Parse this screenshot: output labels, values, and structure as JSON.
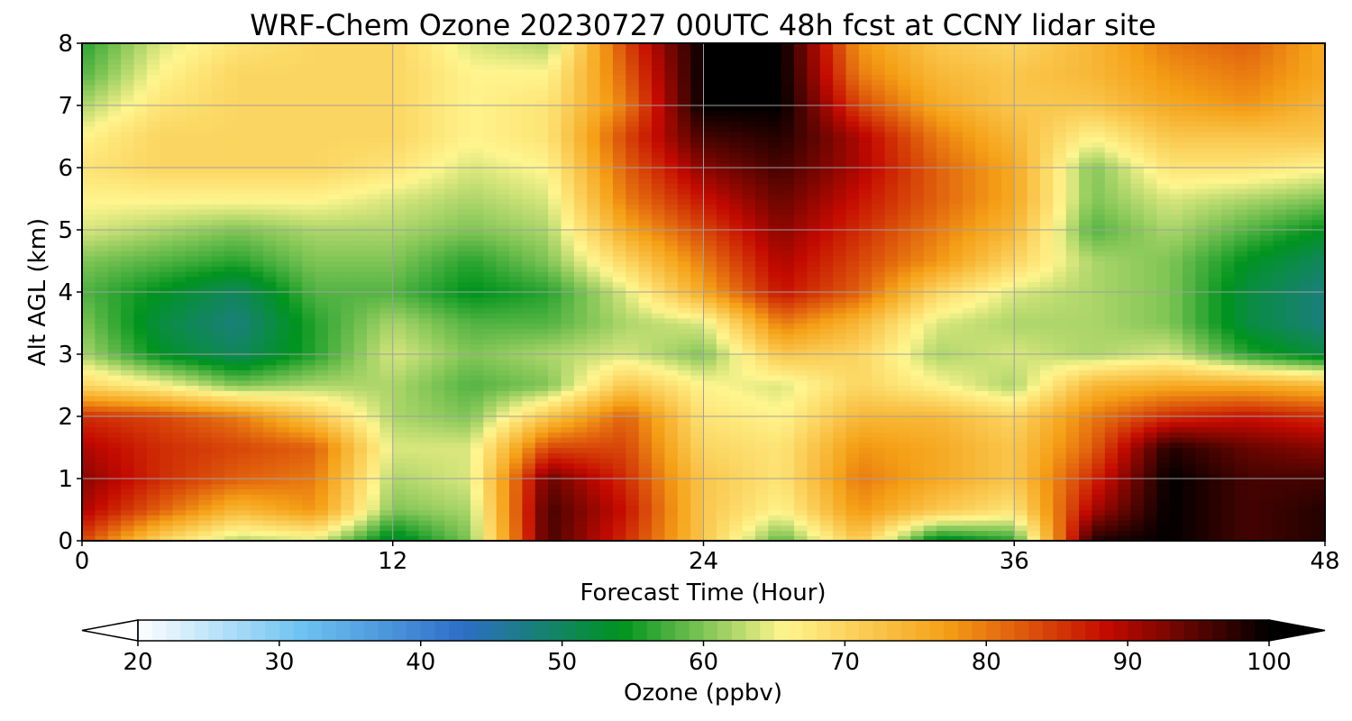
{
  "chart_data": {
    "type": "heatmap",
    "title": "WRF-Chem Ozone  20230727 00UTC 48h fcst at CCNY lidar site",
    "xlabel": "Forecast Time (Hour)",
    "ylabel": "Alt AGL (km)",
    "xlim": [
      0,
      48
    ],
    "ylim": [
      0,
      8
    ],
    "xticks": [
      0,
      12,
      24,
      36,
      48
    ],
    "yticks": [
      0,
      1,
      2,
      3,
      4,
      5,
      6,
      7,
      8
    ],
    "grid": true,
    "x": [
      0,
      3,
      6,
      9,
      12,
      15,
      18,
      21,
      24,
      27,
      30,
      33,
      36,
      39,
      42,
      45,
      48
    ],
    "y": [
      0,
      0.5,
      1,
      1.5,
      2,
      2.5,
      3,
      3.5,
      4,
      4.5,
      5,
      5.5,
      6,
      6.5,
      7,
      7.5,
      8
    ],
    "values": [
      [
        84,
        70,
        62,
        64,
        52,
        60,
        96,
        86,
        72,
        58,
        72,
        52,
        56,
        98,
        100,
        96,
        98
      ],
      [
        90,
        82,
        74,
        78,
        60,
        62,
        96,
        88,
        72,
        66,
        78,
        72,
        68,
        90,
        100,
        96,
        98
      ],
      [
        92,
        86,
        82,
        80,
        62,
        64,
        94,
        86,
        72,
        68,
        80,
        76,
        72,
        86,
        100,
        96,
        96
      ],
      [
        90,
        86,
        84,
        82,
        64,
        64,
        84,
        84,
        70,
        68,
        78,
        76,
        72,
        82,
        98,
        94,
        92
      ],
      [
        86,
        84,
        80,
        72,
        62,
        60,
        72,
        82,
        68,
        66,
        74,
        74,
        70,
        80,
        86,
        88,
        86
      ],
      [
        70,
        66,
        60,
        62,
        62,
        58,
        60,
        72,
        66,
        64,
        70,
        66,
        62,
        74,
        76,
        76,
        74
      ],
      [
        62,
        54,
        50,
        56,
        64,
        60,
        62,
        64,
        60,
        72,
        70,
        62,
        64,
        62,
        64,
        56,
        52
      ],
      [
        60,
        52,
        48,
        56,
        62,
        58,
        58,
        62,
        64,
        80,
        74,
        64,
        62,
        62,
        60,
        52,
        48
      ],
      [
        58,
        54,
        50,
        58,
        58,
        54,
        56,
        64,
        76,
        88,
        82,
        70,
        64,
        62,
        60,
        52,
        48
      ],
      [
        60,
        58,
        56,
        60,
        60,
        56,
        60,
        70,
        80,
        90,
        84,
        78,
        70,
        62,
        60,
        54,
        50
      ],
      [
        64,
        62,
        60,
        62,
        62,
        60,
        62,
        76,
        84,
        92,
        86,
        80,
        74,
        58,
        62,
        58,
        54
      ],
      [
        66,
        66,
        66,
        66,
        64,
        62,
        64,
        80,
        88,
        94,
        88,
        82,
        76,
        60,
        64,
        62,
        60
      ],
      [
        68,
        70,
        70,
        70,
        68,
        64,
        66,
        82,
        92,
        96,
        90,
        82,
        76,
        60,
        68,
        68,
        66
      ],
      [
        66,
        70,
        70,
        70,
        70,
        66,
        68,
        84,
        96,
        98,
        90,
        80,
        74,
        66,
        72,
        72,
        72
      ],
      [
        62,
        68,
        70,
        70,
        70,
        66,
        68,
        80,
        100,
        100,
        84,
        76,
        72,
        72,
        76,
        78,
        74
      ],
      [
        58,
        66,
        70,
        70,
        70,
        66,
        66,
        82,
        100,
        100,
        80,
        74,
        72,
        74,
        78,
        80,
        76
      ],
      [
        56,
        64,
        68,
        70,
        70,
        64,
        62,
        84,
        100,
        100,
        78,
        72,
        70,
        74,
        80,
        82,
        76
      ]
    ],
    "colorbar": {
      "label": "Ozone  (ppbv)",
      "min": 20,
      "max": 100,
      "ticks": [
        20,
        30,
        40,
        50,
        60,
        70,
        80,
        90,
        100
      ],
      "extend": "both",
      "colors": [
        "#ffffff",
        "#6fc4f2",
        "#2e6ec8",
        "#00941e",
        "#fff58e",
        "#f5a016",
        "#c40a00",
        "#000000"
      ]
    }
  }
}
